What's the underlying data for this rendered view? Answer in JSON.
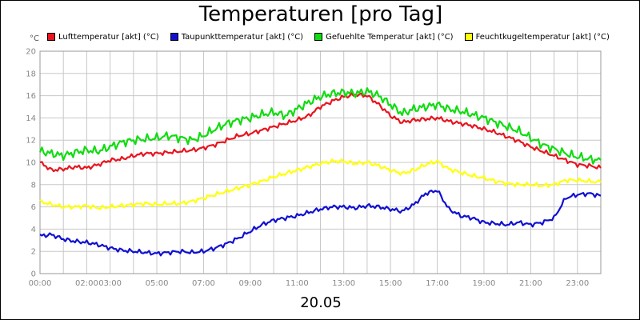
{
  "chart_data": {
    "type": "line",
    "title": "Temperaturen [pro Tag]",
    "unit": "°C",
    "date_label": "20.05",
    "ylim": [
      0,
      20
    ],
    "y_ticks": [
      0,
      2,
      4,
      6,
      8,
      10,
      12,
      14,
      16,
      18,
      20
    ],
    "xlim_hours": [
      0,
      24
    ],
    "x_ticks": [
      {
        "h": 0,
        "label": "00:00"
      },
      {
        "h": 2,
        "label": "02:00"
      },
      {
        "h": 3,
        "label": "03:00"
      },
      {
        "h": 5,
        "label": "05:00"
      },
      {
        "h": 7,
        "label": "07:00"
      },
      {
        "h": 9,
        "label": "09:00"
      },
      {
        "h": 11,
        "label": "11:00"
      },
      {
        "h": 13,
        "label": "13:00"
      },
      {
        "h": 15,
        "label": "15:00"
      },
      {
        "h": 17,
        "label": "17:00"
      },
      {
        "h": 19,
        "label": "19:00"
      },
      {
        "h": 21,
        "label": "21:00"
      },
      {
        "h": 23,
        "label": "23:00"
      }
    ],
    "grid": true,
    "legend_position": "top",
    "series": [
      {
        "name": "Lufttemperatur [akt] (°C)",
        "color": "#e8141e",
        "hours": [
          0,
          0.5,
          1,
          1.5,
          2,
          2.5,
          3,
          3.5,
          4,
          4.5,
          5,
          5.5,
          6,
          6.5,
          7,
          7.5,
          8,
          8.5,
          9,
          9.5,
          10,
          10.5,
          11,
          11.5,
          12,
          12.5,
          13,
          13.5,
          14,
          14.5,
          15,
          15.5,
          16,
          16.5,
          17,
          17.5,
          18,
          18.5,
          19,
          19.5,
          20,
          20.5,
          21,
          21.5,
          22,
          22.5,
          23,
          23.5,
          24
        ],
        "values": [
          10.0,
          9.3,
          9.4,
          9.6,
          9.5,
          9.8,
          10.2,
          10.3,
          10.6,
          10.8,
          10.8,
          10.9,
          11.0,
          11.1,
          11.3,
          11.6,
          12.0,
          12.4,
          12.6,
          12.9,
          13.2,
          13.5,
          13.8,
          14.2,
          15.0,
          15.5,
          15.9,
          16.1,
          16.0,
          15.2,
          14.2,
          13.6,
          13.8,
          13.9,
          14.0,
          13.7,
          13.5,
          13.3,
          13.0,
          12.7,
          12.3,
          11.9,
          11.4,
          11.0,
          10.6,
          10.2,
          9.8,
          9.7,
          9.5
        ]
      },
      {
        "name": "Taupunkttemperatur [akt] (°C)",
        "color": "#1010d0",
        "hours": [
          0,
          0.5,
          1,
          1.5,
          2,
          2.5,
          3,
          3.5,
          4,
          4.5,
          5,
          5.5,
          6,
          6.5,
          7,
          7.5,
          8,
          8.5,
          9,
          9.5,
          10,
          10.5,
          11,
          11.5,
          12,
          12.5,
          13,
          13.5,
          14,
          14.5,
          15,
          15.5,
          16,
          16.5,
          17,
          17.5,
          18,
          18.5,
          19,
          19.5,
          20,
          20.5,
          21,
          21.5,
          22,
          22.5,
          23,
          23.5,
          24
        ],
        "values": [
          3.4,
          3.5,
          3.1,
          2.9,
          2.8,
          2.6,
          2.3,
          2.1,
          2.0,
          1.9,
          1.8,
          1.9,
          2.0,
          1.9,
          2.0,
          2.3,
          2.7,
          3.2,
          3.8,
          4.4,
          4.8,
          5.0,
          5.2,
          5.5,
          5.8,
          6.0,
          6.0,
          5.9,
          6.1,
          6.0,
          5.8,
          5.6,
          6.2,
          7.2,
          7.5,
          5.8,
          5.2,
          5.0,
          4.6,
          4.5,
          4.4,
          4.6,
          4.4,
          4.6,
          5.0,
          6.8,
          7.1,
          7.2,
          7.0
        ]
      },
      {
        "name": "Gefuehlte Temperatur [akt] (°C)",
        "color": "#10dc10",
        "hours": [
          0,
          0.5,
          1,
          1.5,
          2,
          2.5,
          3,
          3.5,
          4,
          4.5,
          5,
          5.5,
          6,
          6.5,
          7,
          7.5,
          8,
          8.5,
          9,
          9.5,
          10,
          10.5,
          11,
          11.5,
          12,
          12.5,
          13,
          13.5,
          14,
          14.5,
          15,
          15.5,
          16,
          16.5,
          17,
          17.5,
          18,
          18.5,
          19,
          19.5,
          20,
          20.5,
          21,
          21.5,
          22,
          22.5,
          23,
          23.5,
          24
        ],
        "values": [
          11.0,
          10.8,
          10.6,
          10.9,
          11.1,
          11.0,
          11.4,
          11.8,
          12.0,
          12.1,
          12.2,
          12.4,
          12.2,
          12.0,
          12.4,
          13.0,
          13.5,
          13.8,
          14.0,
          14.3,
          14.5,
          14.2,
          14.8,
          15.4,
          15.9,
          16.2,
          16.3,
          16.2,
          16.4,
          16.0,
          15.2,
          14.4,
          14.8,
          15.0,
          15.2,
          14.8,
          14.6,
          14.3,
          14.0,
          13.6,
          13.2,
          12.8,
          12.2,
          11.6,
          11.2,
          10.8,
          10.5,
          10.3,
          10.2
        ]
      },
      {
        "name": "Feuchtkugeltemperatur [akt] (°C)",
        "color": "#ffff10",
        "hours": [
          0,
          0.5,
          1,
          1.5,
          2,
          2.5,
          3,
          3.5,
          4,
          4.5,
          5,
          5.5,
          6,
          6.5,
          7,
          7.5,
          8,
          8.5,
          9,
          9.5,
          10,
          10.5,
          11,
          11.5,
          12,
          12.5,
          13,
          13.5,
          14,
          14.5,
          15,
          15.5,
          16,
          16.5,
          17,
          17.5,
          18,
          18.5,
          19,
          19.5,
          20,
          20.5,
          21,
          21.5,
          22,
          22.5,
          23,
          23.5,
          24
        ],
        "values": [
          6.5,
          6.2,
          6.0,
          6.0,
          6.1,
          5.9,
          6.0,
          6.1,
          6.2,
          6.3,
          6.2,
          6.3,
          6.3,
          6.5,
          6.8,
          7.1,
          7.4,
          7.7,
          8.0,
          8.3,
          8.7,
          9.0,
          9.3,
          9.6,
          9.9,
          10.1,
          10.1,
          9.9,
          10.0,
          9.7,
          9.3,
          9.0,
          9.3,
          9.8,
          10.1,
          9.4,
          9.1,
          8.8,
          8.6,
          8.3,
          8.1,
          8.0,
          8.0,
          7.9,
          8.0,
          8.4,
          8.4,
          8.3,
          8.2
        ]
      }
    ]
  }
}
